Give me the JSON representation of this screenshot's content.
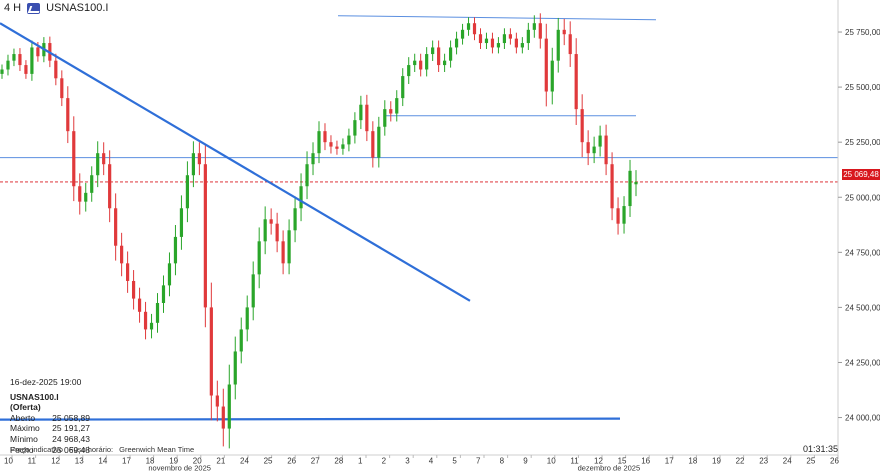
{
  "header": {
    "timeframe": "4 H",
    "symbol": "USNAS100.I",
    "icon": "instrument-chart-icon"
  },
  "info_panel": {
    "datetime": "16-dez-2025 19:00",
    "instrument": "USNAS100.I (Oferta)",
    "rows": [
      {
        "label": "Aberto",
        "value": "25 058,89"
      },
      {
        "label": "Máximo",
        "value": "25 191,27"
      },
      {
        "label": "Mínimo",
        "value": "24 968,43"
      },
      {
        "label": "Fecho",
        "value": "25 069,48"
      }
    ]
  },
  "footer": {
    "price_type": "Preço indicativo",
    "timezone_label": "Fuso horário:",
    "timezone": "Greenwich Mean Time",
    "clock": "01:31:35"
  },
  "current_price_label": "25 069,48",
  "colors": {
    "up": "#2aa52a",
    "down": "#e0393b",
    "trendline": "#2f6fd8",
    "hline": "#5b8fe0",
    "price": "#d8171e"
  },
  "chart_data": {
    "type": "candlestick",
    "y_ticks": [
      24000,
      24250,
      24500,
      24750,
      25000,
      25250,
      25500,
      25750
    ],
    "y_tick_labels": [
      "24 000,00",
      "24 250,00",
      "24 500,00",
      "24 750,00",
      "25 000,00",
      "25 250,00",
      "25 500,00",
      "25 750,00"
    ],
    "ylim": [
      23830,
      25850
    ],
    "x_labels": [
      "10",
      "11",
      "12",
      "13",
      "14",
      "17",
      "18",
      "19",
      "20",
      "21",
      "24",
      "25",
      "26",
      "27",
      "28",
      "1",
      "2",
      "3",
      "4",
      "5",
      "7",
      "8",
      "9",
      "10",
      "11",
      "12",
      "15",
      "16",
      "17",
      "18",
      "19",
      "22",
      "23",
      "24",
      "25",
      "26",
      "2"
    ],
    "month_labels": [
      {
        "text": "novembro de 2025",
        "at_label": 9
      },
      {
        "text": "dezembro de 2025",
        "at_label": 26
      }
    ],
    "closes": [
      25580,
      25620,
      25650,
      25600,
      25560,
      25680,
      25640,
      25700,
      25620,
      25540,
      25450,
      25300,
      25050,
      24980,
      25020,
      25100,
      25200,
      25150,
      24950,
      24780,
      24700,
      24620,
      24540,
      24480,
      24400,
      24430,
      24520,
      24600,
      24700,
      24820,
      24950,
      25100,
      25200,
      25150,
      24500,
      24100,
      24050,
      23950,
      24150,
      24300,
      24400,
      24500,
      24650,
      24800,
      24900,
      24880,
      24800,
      24700,
      24850,
      24950,
      25050,
      25150,
      25200,
      25300,
      25250,
      25230,
      25220,
      25240,
      25280,
      25350,
      25420,
      25300,
      25180,
      25320,
      25400,
      25380,
      25450,
      25550,
      25600,
      25620,
      25580,
      25650,
      25680,
      25600,
      25620,
      25680,
      25720,
      25760,
      25790,
      25740,
      25700,
      25720,
      25680,
      25700,
      25740,
      25720,
      25680,
      25700,
      25760,
      25790,
      25720,
      25480,
      25620,
      25760,
      25740,
      25650,
      25400,
      25250,
      25200,
      25230,
      25280,
      25150,
      24950,
      24880,
      24960,
      25120,
      25069
    ],
    "volatility": [
      50,
      60,
      55,
      60,
      50,
      70,
      55,
      60,
      65,
      70,
      80,
      120,
      150,
      130,
      100,
      90,
      120,
      110,
      140,
      150,
      130,
      120,
      110,
      110,
      100,
      90,
      100,
      100,
      110,
      120,
      130,
      140,
      120,
      110,
      200,
      250,
      150,
      180,
      200,
      150,
      120,
      120,
      130,
      140,
      130,
      110,
      110,
      110,
      110,
      120,
      130,
      130,
      110,
      100,
      80,
      70,
      60,
      60,
      70,
      80,
      90,
      100,
      100,
      100,
      90,
      80,
      80,
      80,
      80,
      70,
      70,
      70,
      70,
      70,
      70,
      70,
      70,
      60,
      60,
      60,
      60,
      60,
      60,
      60,
      60,
      60,
      60,
      60,
      70,
      80,
      100,
      150,
      130,
      120,
      110,
      130,
      160,
      150,
      120,
      100,
      100,
      110,
      120,
      110,
      100,
      110,
      120
    ],
    "x_values": {
      "overall_high": 25825,
      "overall_low": 23840
    },
    "levels": [
      {
        "name": "resistance",
        "value": 25815
      },
      {
        "name": "mid-range",
        "value": 25370
      },
      {
        "name": "support-mid",
        "value": 25180
      },
      {
        "name": "support",
        "value": 23995
      }
    ],
    "trendline": {
      "from": 25790,
      "to": 24530
    },
    "current_price": 25069.48
  }
}
